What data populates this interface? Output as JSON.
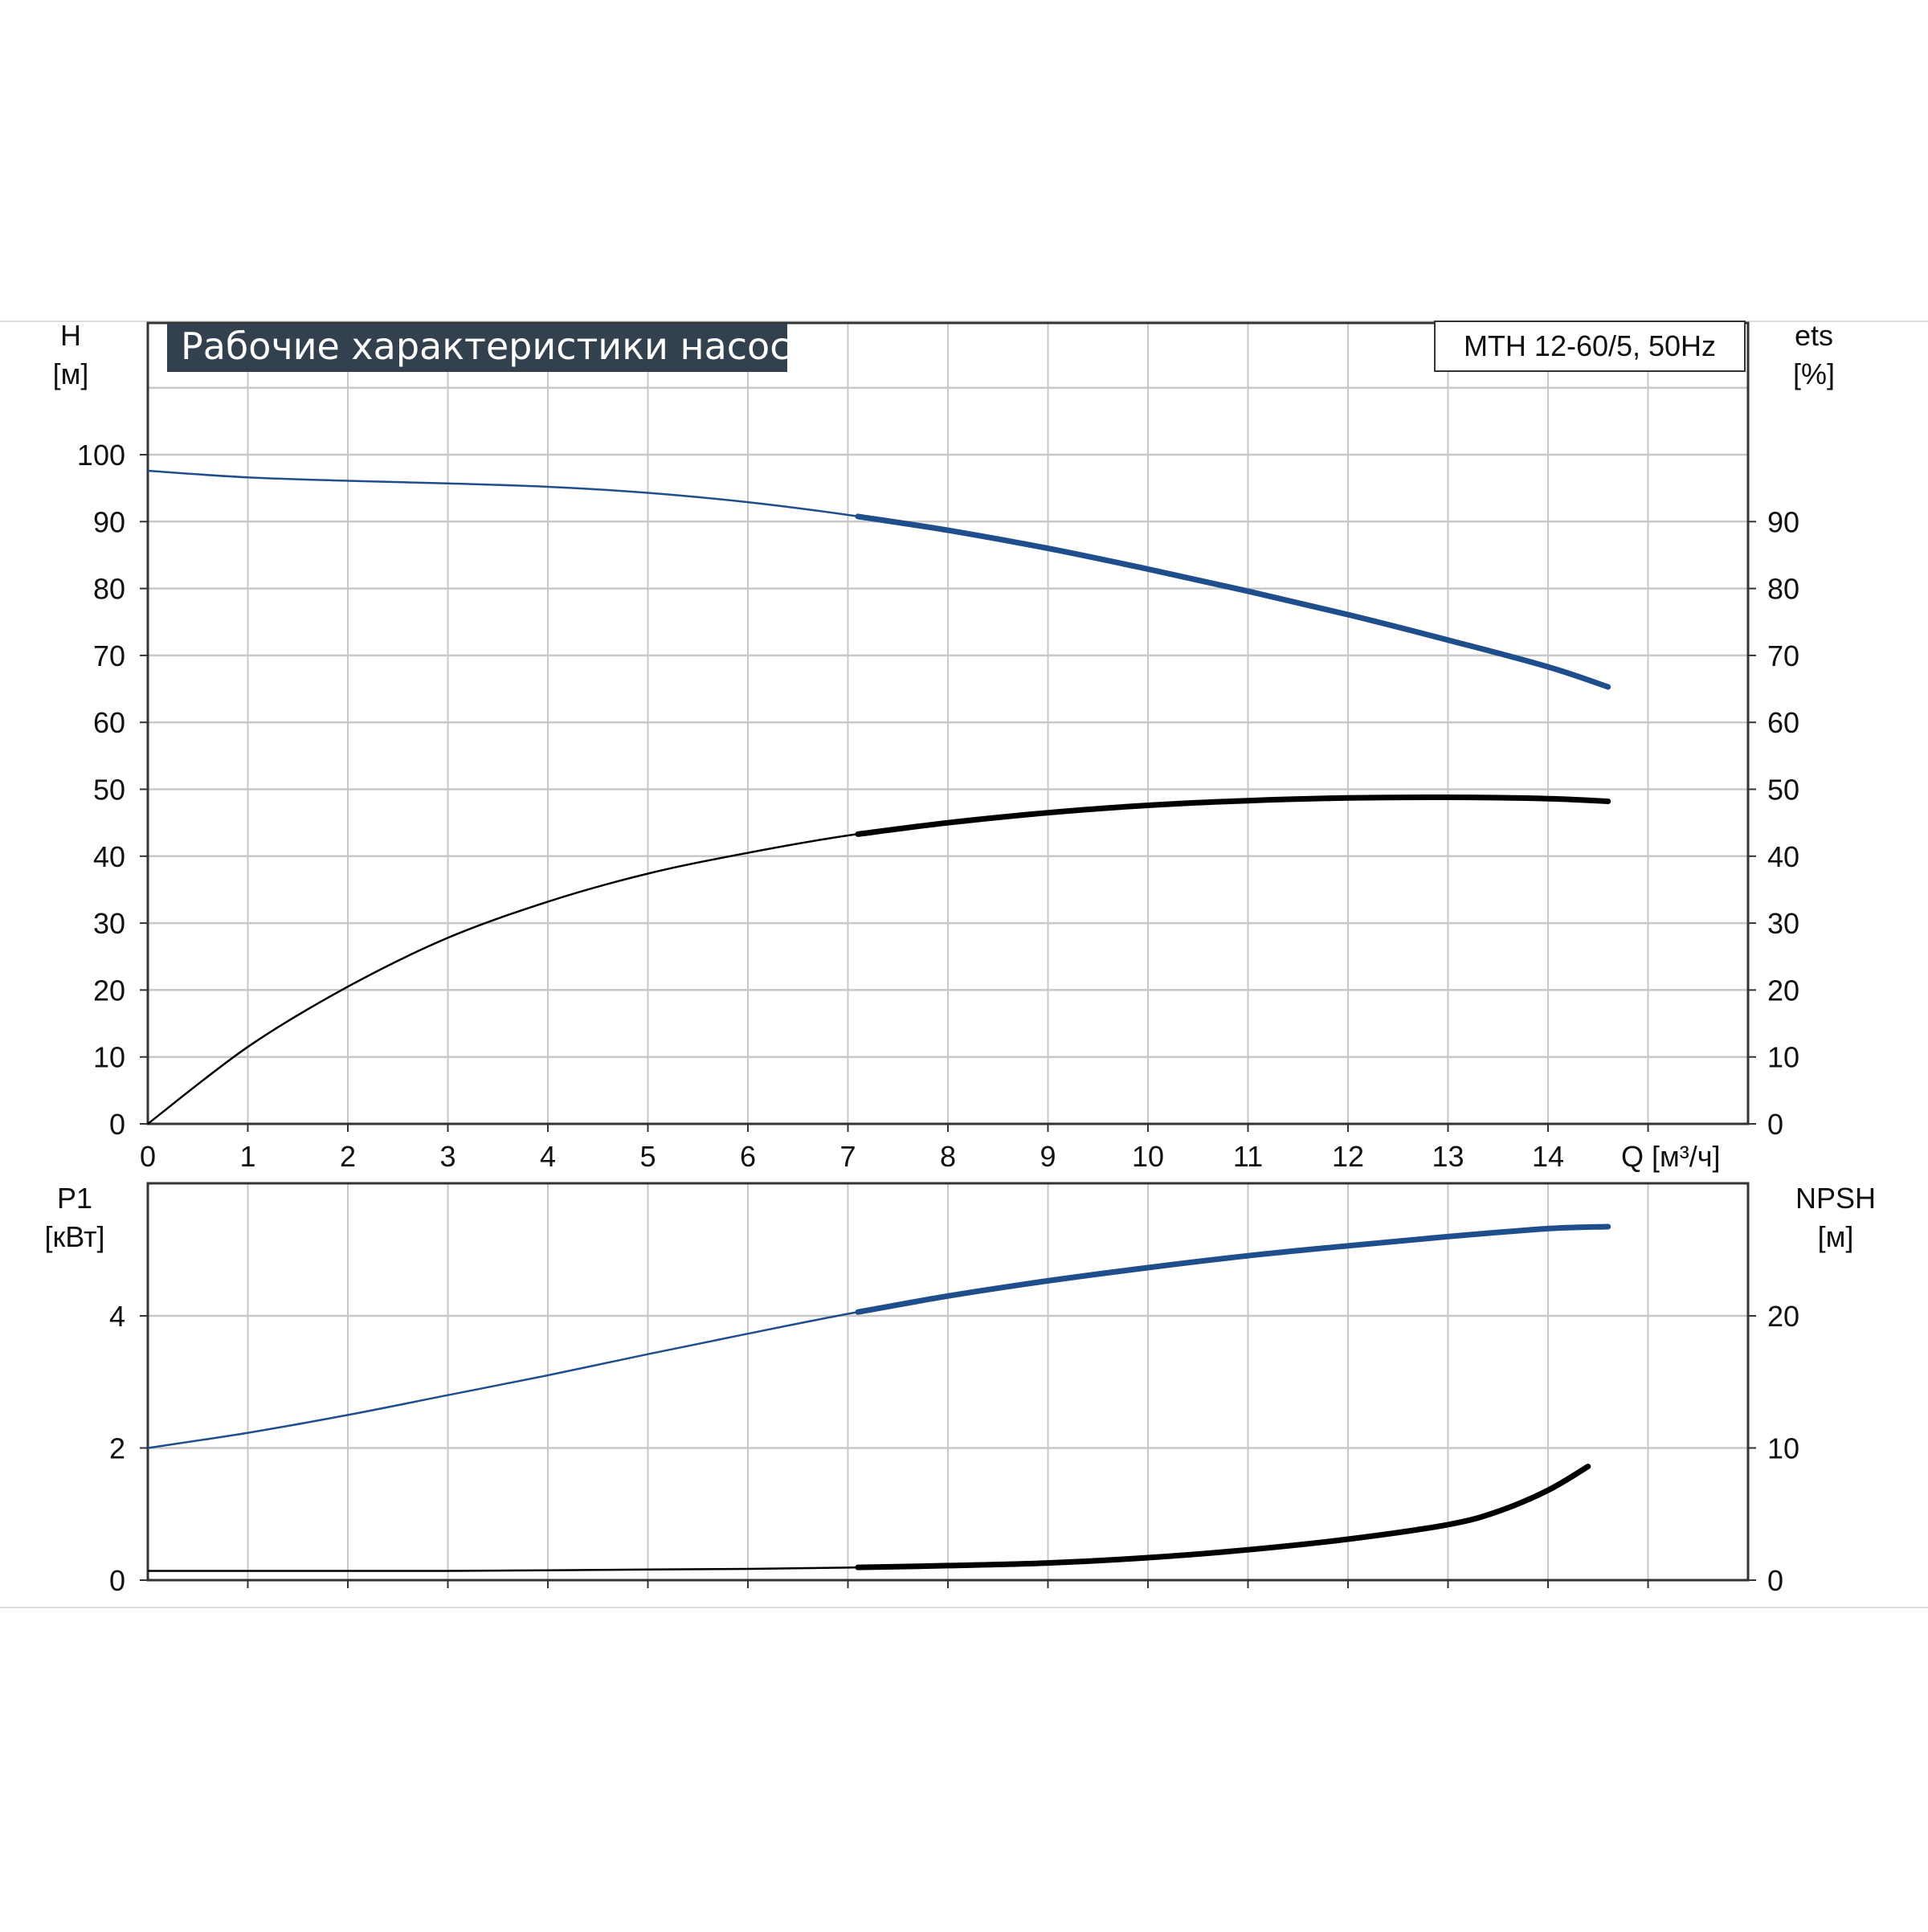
{
  "title": "Рабочие характеристики насоса",
  "model_label": "MTH 12-60/5, 50Hz",
  "colors": {
    "title_bg": "#33404d",
    "title_fg": "#ffffff",
    "blue_curve": "#1f4e8c",
    "black_curve": "#000000",
    "grid": "#c8c8c8",
    "axis": "#333333",
    "separator": "#dddddd"
  },
  "chart_data": [
    {
      "type": "line",
      "panel": "top",
      "xlabel": "Q [м³/ч]",
      "x_ticks": [
        0,
        1,
        2,
        3,
        4,
        5,
        6,
        7,
        8,
        9,
        10,
        11,
        12,
        13,
        14
      ],
      "xlim": [
        0,
        16
      ],
      "ylabel_left": [
        "H",
        "[м]"
      ],
      "ylabel_right": [
        "ets",
        "[%]"
      ],
      "y_ticks_left": [
        0,
        10,
        20,
        30,
        40,
        50,
        60,
        70,
        80,
        90,
        100
      ],
      "y_ticks_right": [
        0,
        10,
        20,
        30,
        40,
        50,
        60,
        70,
        80,
        90
      ],
      "ylim": [
        0,
        110
      ],
      "grid": true,
      "series": [
        {
          "axis": "left",
          "color": "#1f4e8c",
          "bold_from_x": 7.1,
          "x": [
            0,
            1,
            2,
            3,
            4,
            5,
            6,
            7,
            8,
            9,
            10,
            11,
            12,
            13,
            14,
            14.6
          ],
          "y": [
            97.6,
            96.6,
            96.1,
            95.7,
            95.2,
            94.3,
            92.9,
            91.0,
            88.7,
            86.0,
            82.9,
            79.6,
            76.1,
            72.3,
            68.3,
            65.3
          ]
        },
        {
          "axis": "right",
          "color": "#000000",
          "bold_from_x": 7.1,
          "x": [
            0,
            1,
            2,
            3,
            4,
            5,
            6,
            7,
            8,
            9,
            10,
            11,
            12,
            13,
            14,
            14.6
          ],
          "y": [
            0,
            11.5,
            20.5,
            27.8,
            33.2,
            37.4,
            40.5,
            43.1,
            45.0,
            46.5,
            47.6,
            48.3,
            48.7,
            48.8,
            48.6,
            48.2
          ]
        }
      ]
    },
    {
      "type": "line",
      "panel": "bottom",
      "xlim": [
        0,
        16
      ],
      "ylabel_left": [
        "P1",
        "[кВт]"
      ],
      "ylabel_right": [
        "NPSH",
        "[м]"
      ],
      "y_ticks_left": [
        0,
        2,
        4
      ],
      "y_ticks_right": [
        0,
        10,
        20
      ],
      "ylim_left": [
        0,
        6
      ],
      "ylim_right": [
        0,
        30
      ],
      "grid": true,
      "series": [
        {
          "axis": "left",
          "color": "#1f4e8c",
          "bold_from_x": 7.1,
          "x": [
            0,
            1,
            2,
            3,
            4,
            5,
            6,
            7,
            8,
            9,
            10,
            11,
            12,
            13,
            14,
            14.6
          ],
          "y": [
            2.0,
            2.23,
            2.5,
            2.8,
            3.1,
            3.42,
            3.73,
            4.03,
            4.3,
            4.53,
            4.73,
            4.91,
            5.06,
            5.2,
            5.32,
            5.35
          ]
        },
        {
          "axis": "right",
          "color": "#000000",
          "bold_from_x": 7.1,
          "x": [
            0,
            1,
            2,
            3,
            4,
            5,
            6,
            7,
            8,
            9,
            10,
            11,
            12,
            13,
            13.5,
            14,
            14.4
          ],
          "y": [
            0.7,
            0.7,
            0.7,
            0.7,
            0.75,
            0.8,
            0.85,
            0.95,
            1.1,
            1.3,
            1.7,
            2.3,
            3.1,
            4.2,
            5.2,
            6.8,
            8.6
          ]
        }
      ]
    }
  ]
}
